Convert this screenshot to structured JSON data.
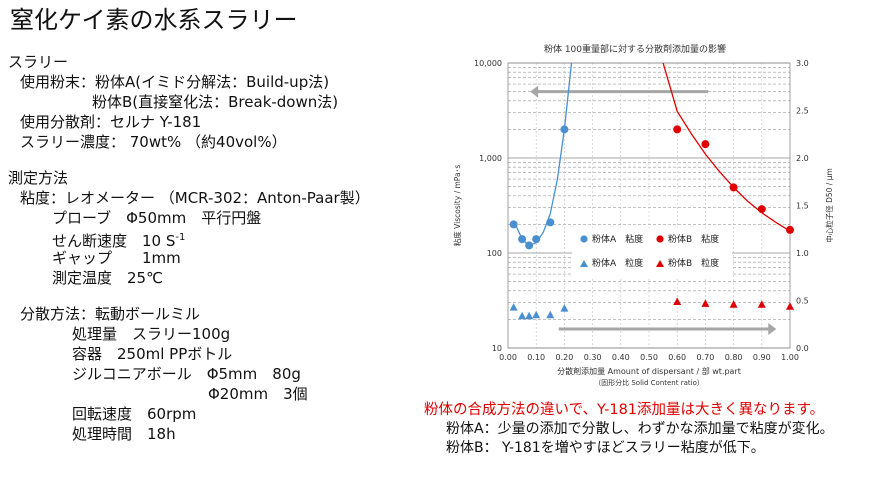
{
  "title": "窒化ケイ素の水系スラリー",
  "left_lines": [
    {
      "indent": 0,
      "text": "スラリー"
    },
    {
      "indent": 12,
      "text": "使用粉末：粉体A(イミド分解法：Build-up法)"
    },
    {
      "indent": 84,
      "text": "粉体B(直接窒化法：Break-down法)"
    },
    {
      "indent": 12,
      "text": "使用分散剤：セルナ Y-181"
    },
    {
      "indent": 12,
      "text": "スラリー濃度： 70wt% （約40vol%）"
    },
    {
      "gap": true
    },
    {
      "indent": 0,
      "text": "測定方法"
    },
    {
      "indent": 12,
      "text": "粘度：レオメーター （MCR-302：Anton-Paar製）"
    },
    {
      "indent": 44,
      "text": "プローブ　Φ50mm　平行円盤"
    },
    {
      "indent": 44,
      "text": "せん断速度　10 S",
      "sup": "-1"
    },
    {
      "indent": 44,
      "text": "ギャップ　　1mm"
    },
    {
      "indent": 44,
      "text": "測定温度　25℃"
    },
    {
      "gap": true
    },
    {
      "indent": 12,
      "text": "分散方法：転動ボールミル"
    },
    {
      "indent": 64,
      "text": "処理量　スラリー100g"
    },
    {
      "indent": 64,
      "text": "容器　250ml PPボトル"
    },
    {
      "indent": 64,
      "text": "ジルコニアボール　Φ5mm　80g"
    },
    {
      "indent": 200,
      "text": "Φ20mm　3個"
    },
    {
      "indent": 64,
      "text": "回転速度　60rpm"
    },
    {
      "indent": 64,
      "text": "処理時間　18h"
    }
  ],
  "notes": {
    "red": "粉体の合成方法の違いで、Y-181添加量は大きく異なります。",
    "a": "粉体A：少量の添加で分散し、わずかな添加量で粘度が変化。",
    "b": "粉体B： Y-181を増やすほどスラリー粘度が低下。"
  },
  "colors": {
    "powder_a": "#4a90d0",
    "powder_b": "#e00000",
    "arrow": "#a6a6a6",
    "grid": "#9a9a9a"
  },
  "chart_data": {
    "type": "scatter",
    "title": "粉体 100重量部に対する分散剤添加量の影響",
    "xlabel": "分散剤添加量 Amount of dispersant / 部 wt.part",
    "xlabel2": "（固形分比 Solid Content ratio）",
    "ylabel": "粘度 Viscosity / mPa･s",
    "y2label": "中心粒子径 D50 / μm",
    "xlim": [
      0.0,
      1.0
    ],
    "xticks": [
      "0.00",
      "0.10",
      "0.20",
      "0.30",
      "0.40",
      "0.50",
      "0.60",
      "0.70",
      "0.80",
      "0.90",
      "1.00"
    ],
    "ylim": [
      10,
      10000
    ],
    "yscale": "log",
    "yticks": [
      "10",
      "100",
      "1,000",
      "10,000"
    ],
    "y2lim": [
      0.0,
      3.0
    ],
    "y2ticks": [
      "0.0",
      "0.5",
      "1.0",
      "1.5",
      "2.0",
      "2.5",
      "3.0"
    ],
    "grid": true,
    "legend": [
      {
        "name": "粉体A　粘度",
        "marker": "circle",
        "color": "#4a90d0"
      },
      {
        "name": "粉体B　粘度",
        "marker": "circle",
        "color": "#e00000"
      },
      {
        "name": "粉体A　粒度",
        "marker": "triangle",
        "color": "#4a90d0"
      },
      {
        "name": "粉体B　粒度",
        "marker": "triangle",
        "color": "#e00000"
      }
    ],
    "series": [
      {
        "name": "粉体A　粘度",
        "axis": "y",
        "marker": "circle",
        "color": "#4a90d0",
        "x": [
          0.02,
          0.05,
          0.075,
          0.1,
          0.15,
          0.2
        ],
        "y": [
          200,
          140,
          120,
          140,
          210,
          2000
        ]
      },
      {
        "name": "粉体B　粘度",
        "axis": "y",
        "marker": "circle",
        "color": "#e00000",
        "x": [
          0.6,
          0.7,
          0.8,
          0.9,
          1.0
        ],
        "y": [
          2000,
          1400,
          490,
          290,
          175
        ]
      },
      {
        "name": "粉体A　粒度",
        "axis": "y2",
        "marker": "triangle",
        "color": "#4a90d0",
        "x": [
          0.02,
          0.05,
          0.075,
          0.1,
          0.15,
          0.2
        ],
        "y": [
          0.43,
          0.34,
          0.34,
          0.35,
          0.35,
          0.42
        ]
      },
      {
        "name": "粉体B　粒度",
        "axis": "y2",
        "marker": "triangle",
        "color": "#e00000",
        "x": [
          0.6,
          0.7,
          0.8,
          0.9,
          1.0
        ],
        "y": [
          0.49,
          0.47,
          0.46,
          0.46,
          0.44
        ]
      }
    ],
    "fits": [
      {
        "series": "粉体A　粘度",
        "color": "#4a90d0",
        "x": [
          0.02,
          0.05,
          0.075,
          0.1,
          0.125,
          0.15,
          0.175,
          0.2,
          0.225
        ],
        "y": [
          220,
          140,
          120,
          128,
          165,
          260,
          600,
          2000,
          10000
        ]
      },
      {
        "series": "粉体B　粘度",
        "color": "#e00000",
        "x": [
          0.55,
          0.6,
          0.65,
          0.7,
          0.75,
          0.8,
          0.85,
          0.9,
          0.95,
          1.0
        ],
        "y": [
          10000,
          3100,
          1800,
          1100,
          720,
          490,
          350,
          265,
          210,
          170
        ]
      }
    ],
    "arrows": [
      {
        "axis": "y",
        "from_x": 0.71,
        "to_x": 0.1,
        "y": 5000
      },
      {
        "axis": "y2",
        "from_x": 0.18,
        "to_x": 0.93,
        "y": 0.2
      }
    ]
  }
}
